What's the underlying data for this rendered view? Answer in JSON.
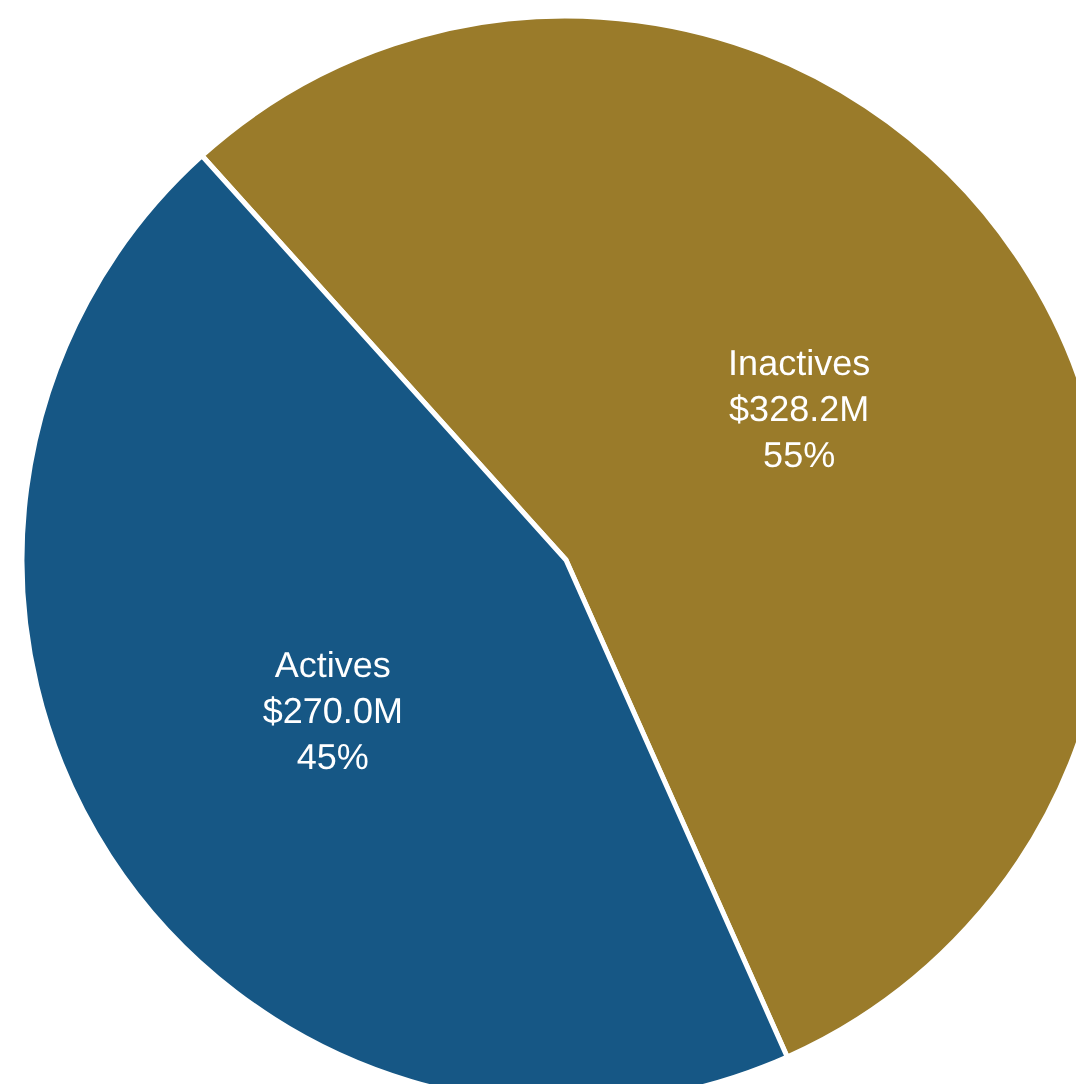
{
  "chart_data": {
    "type": "pie",
    "categories": [
      "Inactives",
      "Actives"
    ],
    "values": [
      55,
      45
    ],
    "colors": [
      "#9a7b2a",
      "#165785"
    ],
    "value_labels": [
      "$328.2M\n55%",
      "$270.0M\n45%"
    ],
    "legend": false
  }
}
